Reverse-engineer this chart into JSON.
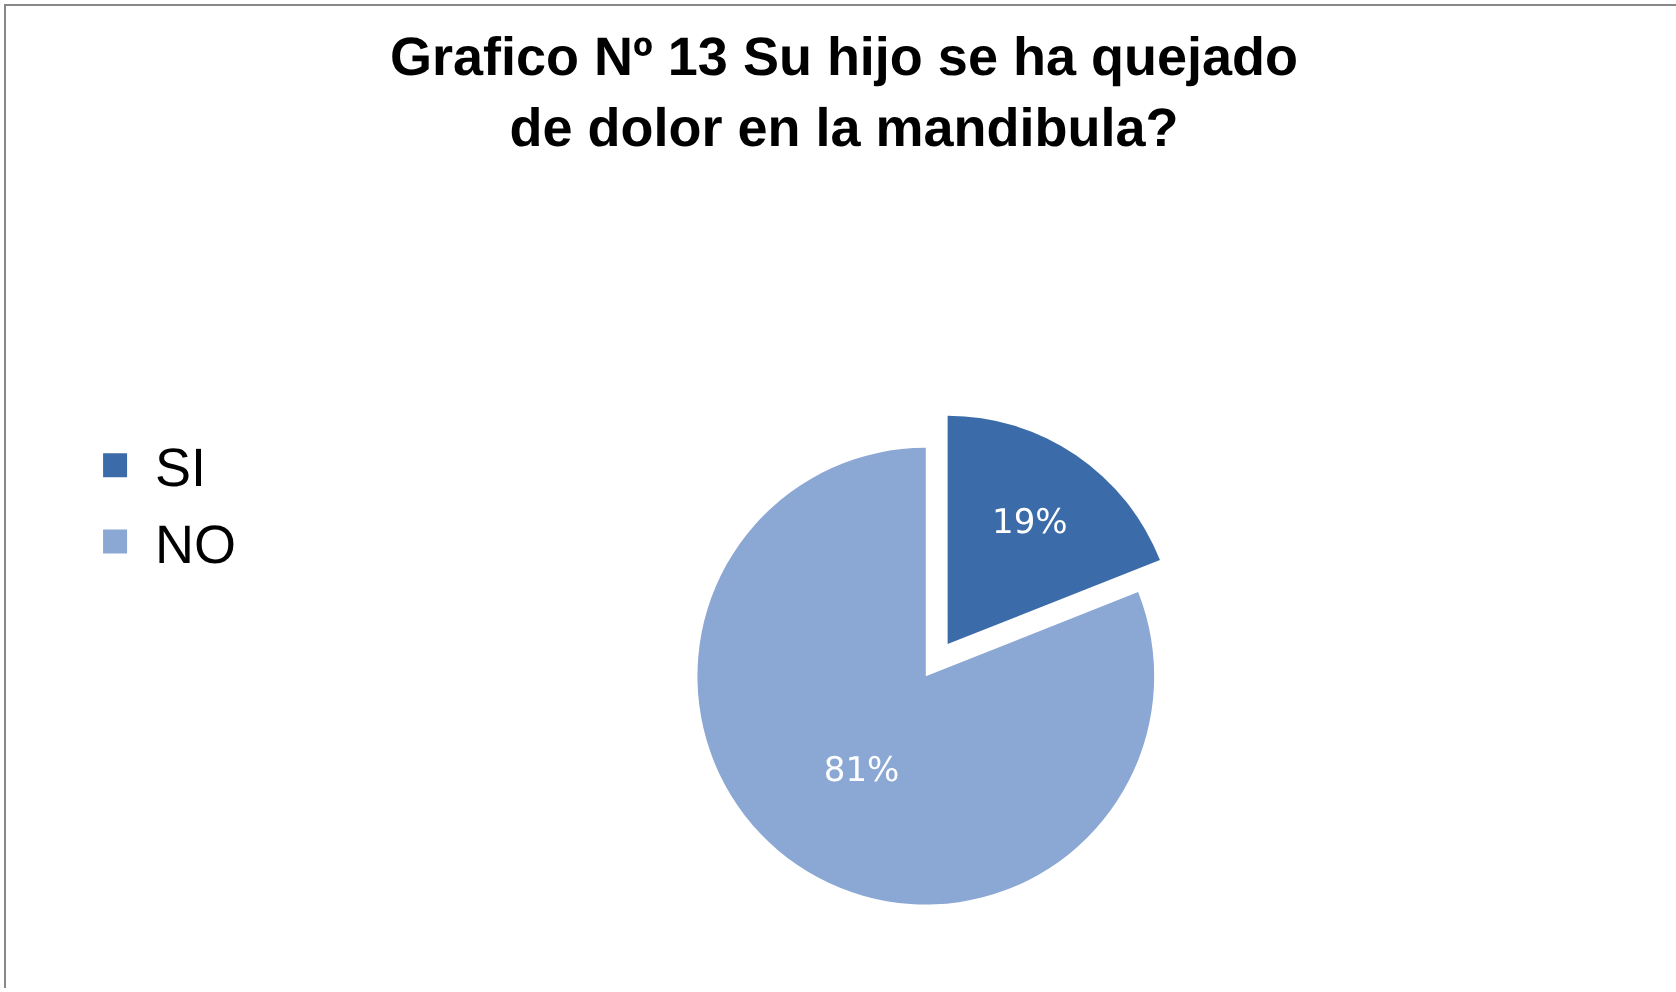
{
  "chart_data": {
    "type": "pie",
    "title": "Grafico Nº 13 Su hijo se ha quejado de dolor en la mandibula?",
    "categories": [
      "SI",
      "NO"
    ],
    "values": [
      19,
      81
    ],
    "value_labels": [
      "19%",
      "81%"
    ],
    "colors": [
      "#3b6ba8",
      "#8ba7d4"
    ],
    "legend": "left"
  }
}
